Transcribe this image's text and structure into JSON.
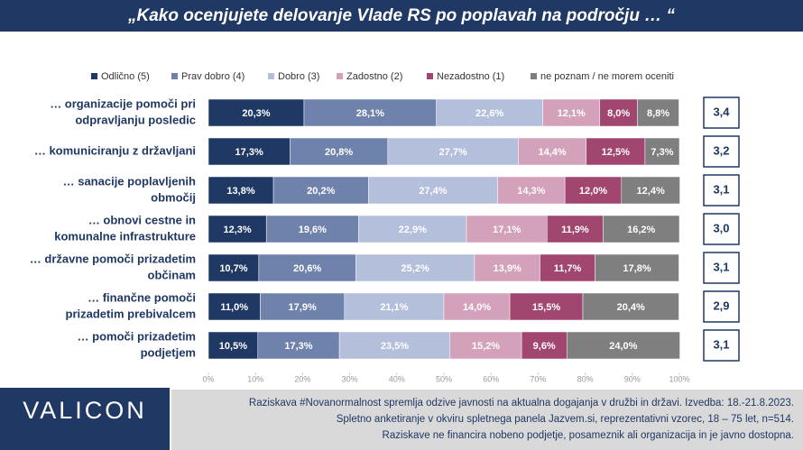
{
  "chart_data": {
    "type": "stacked_bar_horizontal",
    "title": "„Kako ocenjujete delovanje Vlade RS po poplavah na področju … “",
    "categories": [
      [
        "… organizacije pomoči pri",
        "odpravljanju posledic"
      ],
      [
        "… komuniciranju z državljani"
      ],
      [
        "… sanacije poplavljenih",
        "območij"
      ],
      [
        "… obnovi cestne in",
        "komunalne infrastrukture"
      ],
      [
        "… državne pomoči prizadetim",
        "občinam"
      ],
      [
        "… finančne pomoči",
        "prizadetim prebivalcem"
      ],
      [
        "… pomoči prizadetim",
        "podjetjem"
      ]
    ],
    "series": [
      {
        "name": "Odlično (5)",
        "color": "#1f3864",
        "values": [
          20.3,
          17.3,
          13.8,
          12.3,
          10.7,
          11.0,
          10.5
        ],
        "value_labels": [
          "20,3%",
          "17,3%",
          "13,8%",
          "12,3%",
          "10,7%",
          "11,0%",
          "10,5%"
        ]
      },
      {
        "name": "Prav dobro (4)",
        "color": "#6f82ab",
        "values": [
          28.1,
          20.8,
          20.2,
          19.6,
          20.6,
          17.9,
          17.3
        ],
        "value_labels": [
          "28,1%",
          "20,8%",
          "20,2%",
          "19,6%",
          "20,6%",
          "17,9%",
          "17,3%"
        ]
      },
      {
        "name": "Dobro (3)",
        "color": "#b3bfdb",
        "values": [
          22.6,
          27.7,
          27.4,
          22.9,
          25.2,
          21.1,
          23.5
        ],
        "value_labels": [
          "22,6%",
          "27,7%",
          "27,4%",
          "22,9%",
          "25,2%",
          "21,1%",
          "23,5%"
        ]
      },
      {
        "name": "Zadostno (2)",
        "color": "#d3a1b9",
        "values": [
          12.1,
          14.4,
          14.3,
          17.1,
          13.9,
          14.0,
          15.2
        ],
        "value_labels": [
          "12,1%",
          "14,4%",
          "14,3%",
          "17,1%",
          "13,9%",
          "14,0%",
          "15,2%"
        ]
      },
      {
        "name": "Nezadostno (1)",
        "color": "#a1476f",
        "values": [
          8.0,
          12.5,
          12.0,
          11.9,
          11.7,
          15.5,
          9.6
        ],
        "value_labels": [
          "8,0%",
          "12,5%",
          "12,0%",
          "11,9%",
          "11,7%",
          "15,5%",
          "9,6%"
        ]
      },
      {
        "name": "ne poznam / ne morem oceniti",
        "color": "#7f7f7f",
        "values": [
          8.8,
          7.3,
          12.4,
          16.2,
          17.8,
          20.4,
          24.0
        ],
        "value_labels": [
          "8,8%",
          "7,3%",
          "12,4%",
          "16,2%",
          "17,8%",
          "20,4%",
          "24,0%"
        ]
      }
    ],
    "averages": [
      3.4,
      3.2,
      3.1,
      3.0,
      3.1,
      2.9,
      3.1
    ],
    "average_labels": [
      "3,4",
      "3,2",
      "3,1",
      "3,0",
      "3,1",
      "2,9",
      "3,1"
    ],
    "xlim": [
      0,
      100
    ],
    "xticks": [
      {
        "value": 0,
        "label": "0%"
      },
      {
        "value": 10,
        "label": "10%"
      },
      {
        "value": 20,
        "label": "20%"
      },
      {
        "value": 30,
        "label": "30%"
      },
      {
        "value": 40,
        "label": "40%"
      },
      {
        "value": 50,
        "label": "50%"
      },
      {
        "value": 60,
        "label": "60%"
      },
      {
        "value": 70,
        "label": "70%"
      },
      {
        "value": 80,
        "label": "80%"
      },
      {
        "value": 90,
        "label": "90%"
      },
      {
        "value": 100,
        "label": "100%"
      }
    ],
    "logo": "VALICON",
    "footer": [
      "Raziskava #Novanormalnost spremlja odzive javnosti na aktualna dogajanja v družbi in državi. Izvedba: 18.-21.8.2023.",
      "Spletno anketiranje v okviru spletnega panela Jazvem.si, reprezentativni vzorec, 18 – 75 let, n=514.",
      "Raziskave ne financira nobeno podjetje, posameznik ali organizacija in je javno dostopna."
    ]
  }
}
